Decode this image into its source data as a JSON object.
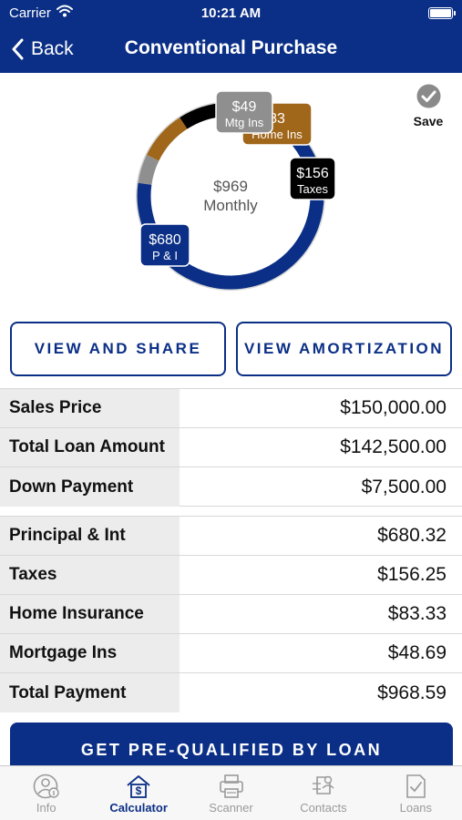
{
  "status_bar": {
    "carrier": "Carrier",
    "time": "10:21 AM"
  },
  "nav": {
    "back_label": "Back",
    "title": "Conventional Purchase"
  },
  "chart_data": {
    "type": "pie",
    "center_value": "$969",
    "center_label": "Monthly",
    "categories": [
      "P & I",
      "Taxes",
      "Home Ins",
      "Mtg Ins"
    ],
    "labels": [
      "$680",
      "$156",
      "83",
      "$49"
    ],
    "values": [
      680.32,
      156.25,
      83.33,
      48.69
    ],
    "colors": [
      "#0b2f86",
      "#000000",
      "#a0661a",
      "#8f8f8f"
    ]
  },
  "save_label": "Save",
  "buttons": {
    "view_share": "VIEW AND SHARE",
    "view_amortization": "VIEW AMORTIZATION"
  },
  "loan_summary": [
    {
      "label": "Sales Price",
      "value": "$150,000.00"
    },
    {
      "label": "Total Loan Amount",
      "value": "$142,500.00"
    },
    {
      "label": "Down Payment",
      "value": "$7,500.00"
    }
  ],
  "payment_breakdown": [
    {
      "label": "Principal & Int",
      "value": "$680.32"
    },
    {
      "label": "Taxes",
      "value": "$156.25"
    },
    {
      "label": "Home Insurance",
      "value": "$83.33"
    },
    {
      "label": "Mortgage Ins",
      "value": "$48.69"
    },
    {
      "label": "Total Payment",
      "value": "$968.59"
    }
  ],
  "cta_label": "GET PRE-QUALIFIED BY LOAN",
  "tabs": [
    {
      "label": "Info",
      "icon": "info-icon"
    },
    {
      "label": "Calculator",
      "icon": "calculator-icon",
      "active": true
    },
    {
      "label": "Scanner",
      "icon": "scanner-icon"
    },
    {
      "label": "Contacts",
      "icon": "contacts-icon"
    },
    {
      "label": "Loans",
      "icon": "loans-icon"
    }
  ]
}
